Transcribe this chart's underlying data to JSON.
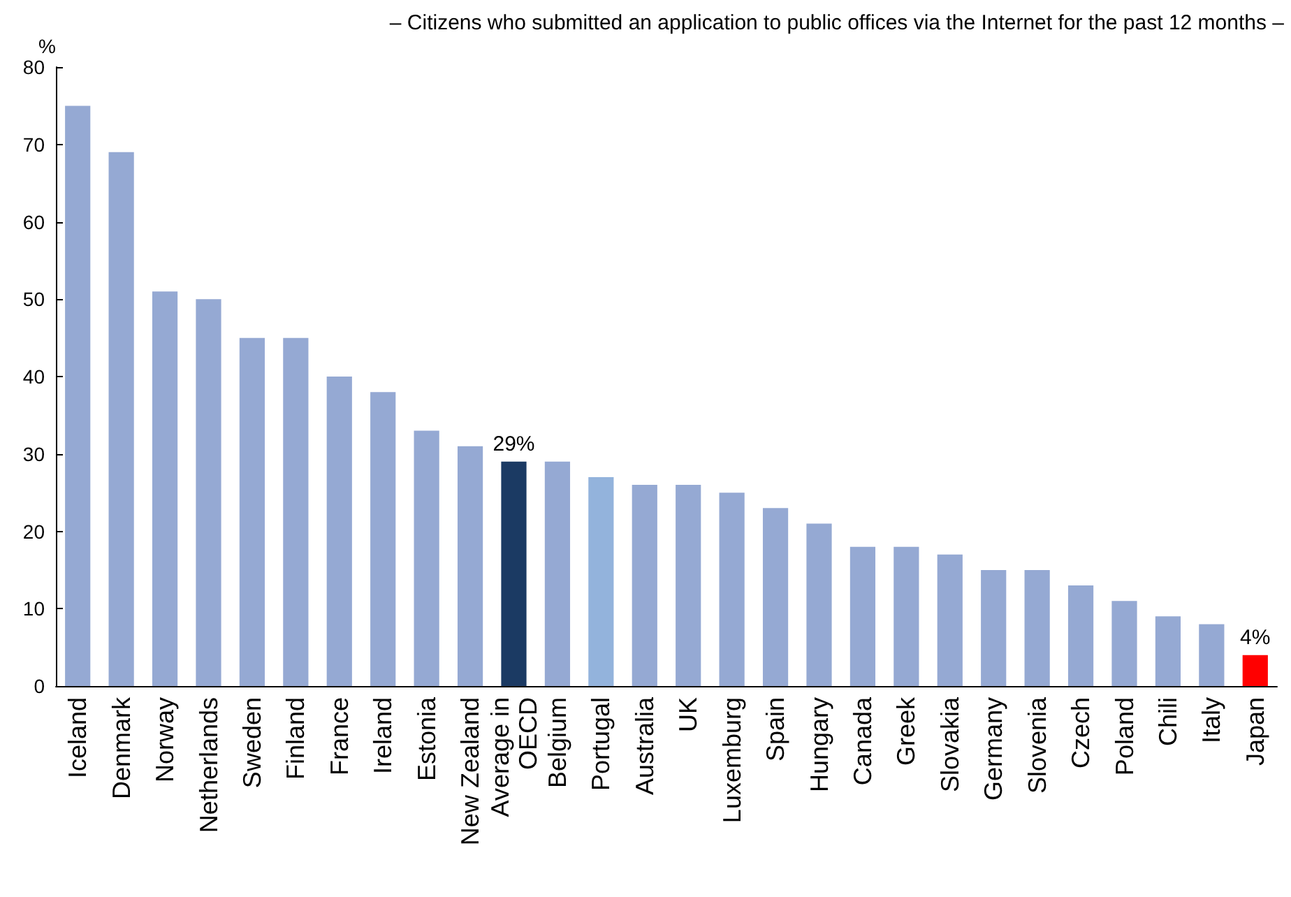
{
  "chart_data": {
    "type": "bar",
    "title": "– Citizens who submitted an application to public offices via the Internet for the past 12 months –",
    "ylabel": "%",
    "categories": [
      "Iceland",
      "Denmark",
      "Norway",
      "Netherlands",
      "Sweden",
      "Finland",
      "France",
      "Ireland",
      "Estonia",
      "New Zealand",
      "Average in\nOECD",
      "Belgium",
      "Portugal",
      "Australia",
      "UK",
      "Luxemburg",
      "Spain",
      "Hungary",
      "Canada",
      "Greek",
      "Slovakia",
      "Germany",
      "Slovenia",
      "Czech",
      "Poland",
      "Chili",
      "Italy",
      "Japan"
    ],
    "values": [
      75,
      69,
      51,
      50,
      45,
      45,
      40,
      38,
      33,
      31,
      29,
      29,
      27,
      26,
      26,
      25,
      23,
      21,
      18,
      18,
      17,
      15,
      15,
      13,
      11,
      9,
      8,
      4
    ],
    "colors": [
      "#95a9d3",
      "#95a9d3",
      "#95a9d3",
      "#95a9d3",
      "#95a9d3",
      "#95a9d3",
      "#95a9d3",
      "#95a9d3",
      "#95a9d3",
      "#95a9d3",
      "#1b3a63",
      "#95a9d3",
      "#93b3dc",
      "#95a9d3",
      "#95a9d3",
      "#95a9d3",
      "#95a9d3",
      "#95a9d3",
      "#95a9d3",
      "#95a9d3",
      "#95a9d3",
      "#95a9d3",
      "#95a9d3",
      "#95a9d3",
      "#95a9d3",
      "#95a9d3",
      "#95a9d3",
      "#ff0000"
    ],
    "value_labels": [
      null,
      null,
      null,
      null,
      null,
      null,
      null,
      null,
      null,
      null,
      "29%",
      null,
      null,
      null,
      null,
      null,
      null,
      null,
      null,
      null,
      null,
      null,
      null,
      null,
      null,
      null,
      null,
      "4%"
    ],
    "ylim": [
      0,
      80
    ],
    "yticks": [
      0,
      10,
      20,
      30,
      40,
      50,
      60,
      70,
      80
    ],
    "grid": false
  }
}
